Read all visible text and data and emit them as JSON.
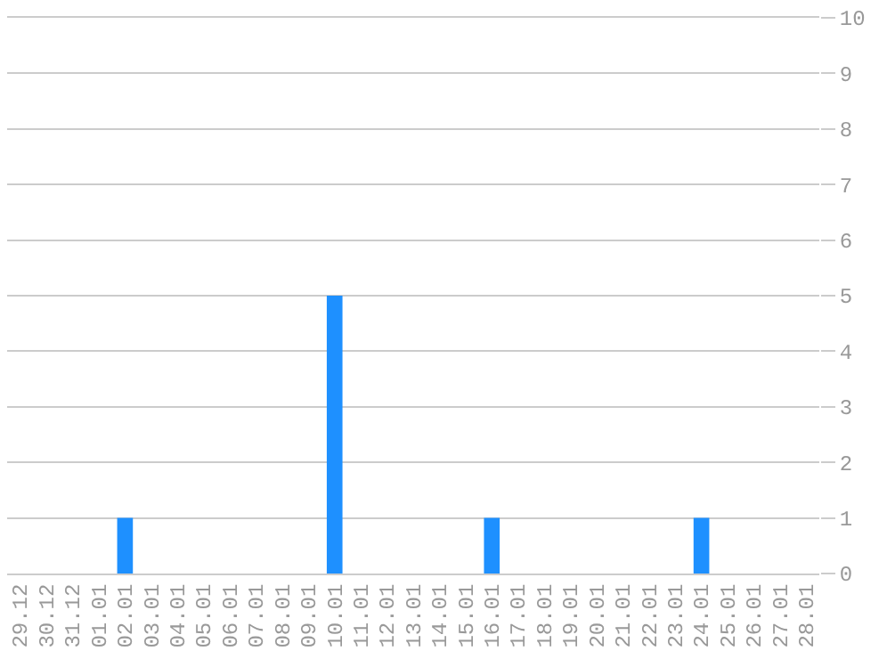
{
  "chart_data": {
    "type": "bar",
    "categories": [
      "29.12",
      "30.12",
      "31.12",
      "01.01",
      "02.01",
      "03.01",
      "04.01",
      "05.01",
      "06.01",
      "07.01",
      "08.01",
      "09.01",
      "10.01",
      "11.01",
      "12.01",
      "13.01",
      "14.01",
      "15.01",
      "16.01",
      "17.01",
      "18.01",
      "19.01",
      "20.01",
      "21.01",
      "22.01",
      "23.01",
      "24.01",
      "25.01",
      "26.01",
      "27.01",
      "28.01"
    ],
    "values": [
      0,
      0,
      0,
      0,
      1,
      0,
      0,
      0,
      0,
      0,
      0,
      0,
      5,
      0,
      0,
      0,
      0,
      0,
      1,
      0,
      0,
      0,
      0,
      0,
      0,
      0,
      1,
      0,
      0,
      0,
      0
    ],
    "color": "#1e90ff",
    "ylim": [
      0,
      10
    ],
    "yticks": [
      0,
      1,
      2,
      3,
      4,
      5,
      6,
      7,
      8,
      9,
      10
    ],
    "grid": "y"
  }
}
